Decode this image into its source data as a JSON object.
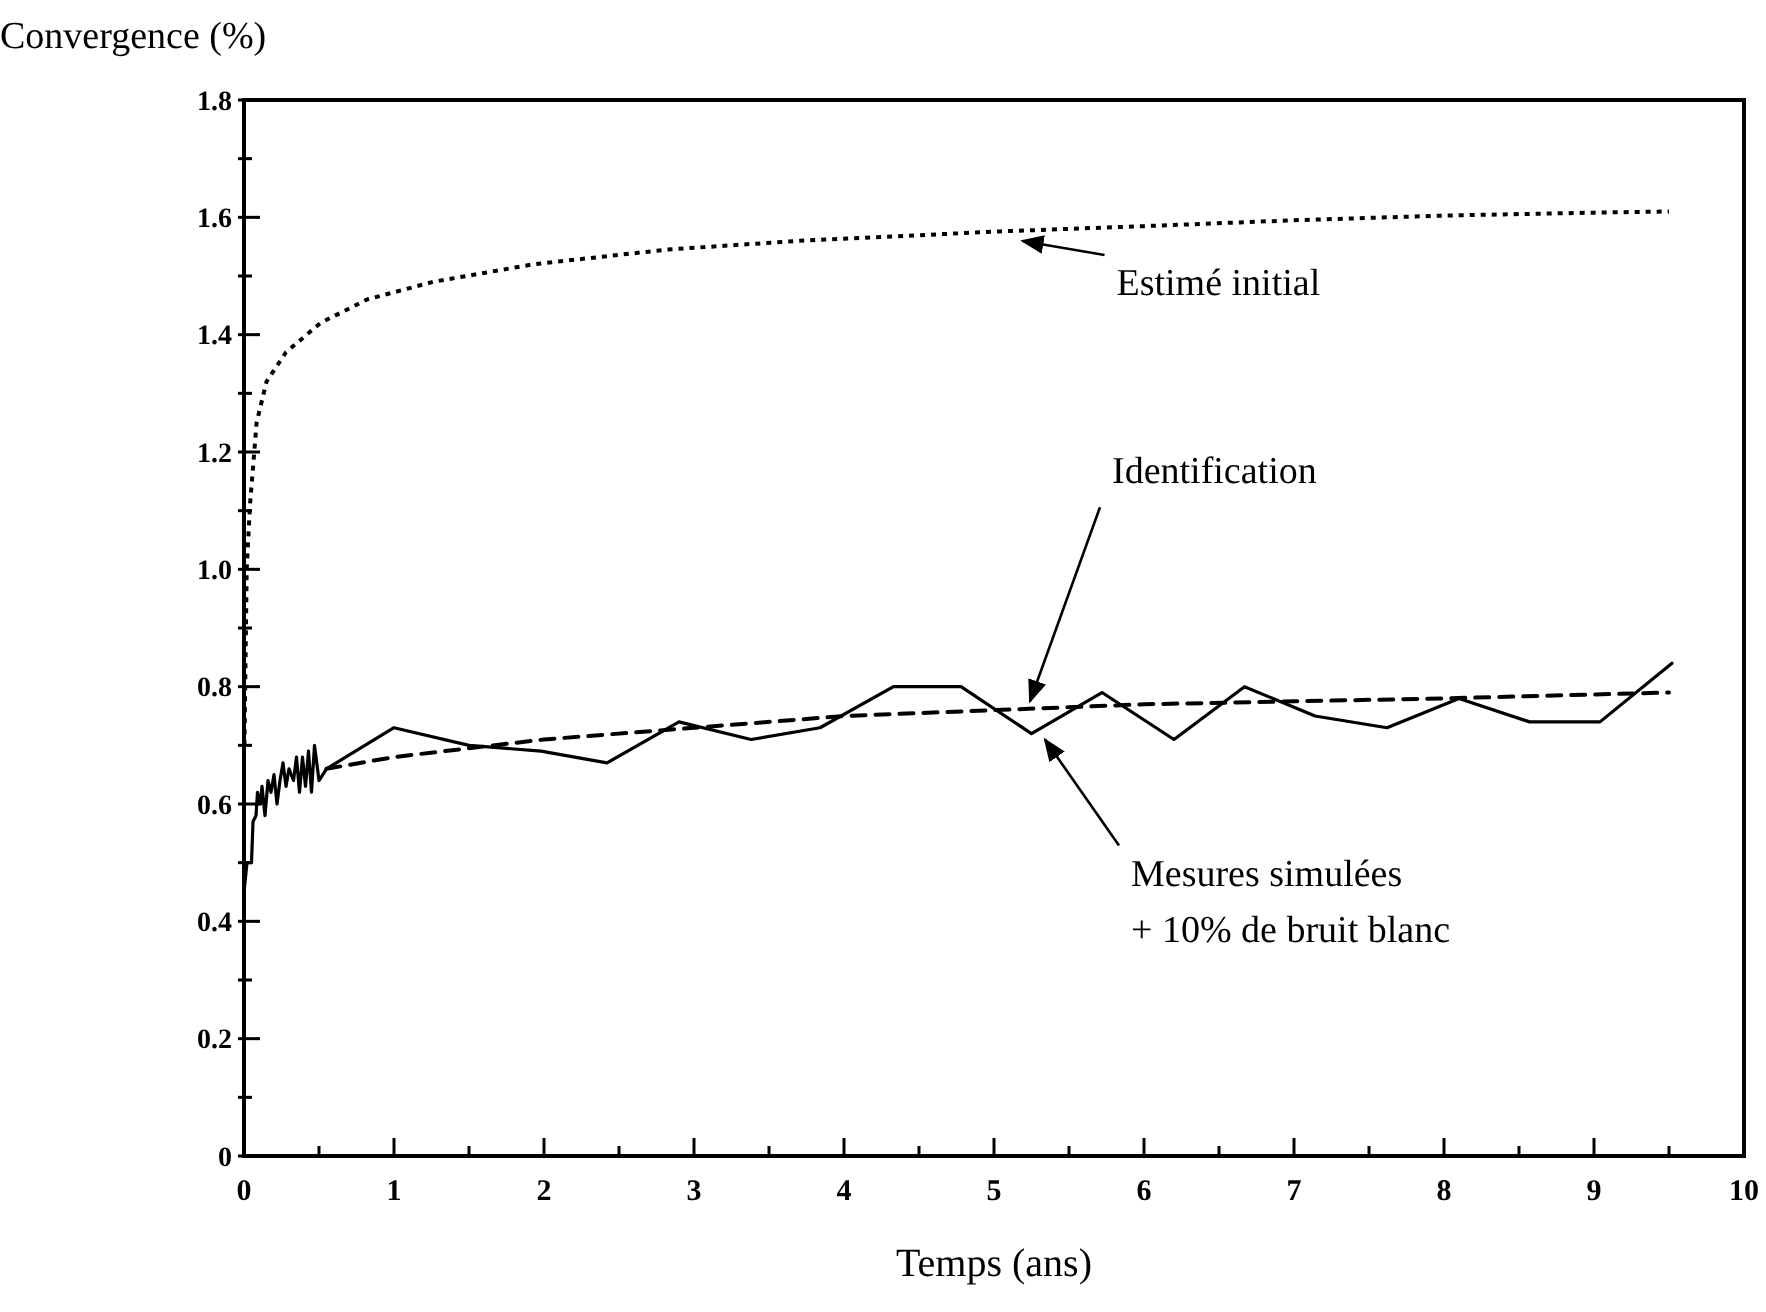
{
  "chart_data": {
    "type": "line",
    "ylabel": "Convergence (%)",
    "xlabel": "Temps (ans)",
    "xlim": [
      0,
      10
    ],
    "ylim": [
      0,
      1.8
    ],
    "xticks": [
      0,
      {
        "value": 0.5,
        "label": null
      },
      1,
      {
        "value": 1.5,
        "label": null
      },
      2,
      {
        "value": 2.5,
        "label": null
      },
      3,
      {
        "value": 3.5,
        "label": null
      },
      4,
      {
        "value": 4.5,
        "label": null
      },
      5,
      {
        "value": 5.5,
        "label": null
      },
      6,
      {
        "value": 6.5,
        "label": null
      },
      7,
      {
        "value": 7.5,
        "label": null
      },
      8,
      {
        "value": 8.5,
        "label": null
      },
      9,
      {
        "value": 9.5,
        "label": null
      },
      10
    ],
    "yticks": [
      0,
      {
        "value": 0.1,
        "label": null
      },
      0.2,
      {
        "value": 0.3,
        "label": null
      },
      0.4,
      {
        "value": 0.5,
        "label": null
      },
      0.6,
      {
        "value": 0.7,
        "label": null
      },
      0.8,
      {
        "value": 0.9,
        "label": null
      },
      {
        "value": 1.0,
        "label": "1.0"
      },
      {
        "value": 1.1,
        "label": null
      },
      1.2,
      {
        "value": 1.3,
        "label": null
      },
      1.4,
      {
        "value": 1.5,
        "label": null
      },
      1.6,
      {
        "value": 1.7,
        "label": null
      },
      1.8
    ],
    "grid": false,
    "marker": "none",
    "series": [
      {
        "color": "#000000",
        "line_style": "dotted",
        "x": [
          0.003,
          0.018,
          0.04,
          0.084,
          0.15,
          0.28,
          0.51,
          0.82,
          1.26,
          1.93,
          2.82,
          3.7,
          5.04,
          6,
          7,
          8,
          9,
          9.5
        ],
        "values": [
          0.7,
          1.0,
          1.11,
          1.25,
          1.32,
          1.37,
          1.42,
          1.46,
          1.49,
          1.52,
          1.545,
          1.56,
          1.576,
          1.585,
          1.595,
          1.603,
          1.608,
          1.61
        ]
      },
      {
        "color": "#000000",
        "line_style": "solid",
        "x": [
          0,
          0.02,
          0.05,
          0.06,
          0.08,
          0.09,
          0.11,
          0.12,
          0.14,
          0.16,
          0.18,
          0.2,
          0.22,
          0.24,
          0.26,
          0.28,
          0.3,
          0.33,
          0.35,
          0.37,
          0.39,
          0.41,
          0.43,
          0.45,
          0.47,
          0.5,
          0.55,
          1.0,
          1.5,
          1.98,
          2.42,
          2.9,
          3.38,
          3.84,
          4.33,
          4.78,
          5.25,
          5.72,
          6.2,
          6.67,
          7.14,
          7.62,
          8.1,
          8.57,
          9.04,
          9.52
        ],
        "values": [
          0.45,
          0.5,
          0.5,
          0.57,
          0.58,
          0.62,
          0.6,
          0.63,
          0.58,
          0.64,
          0.62,
          0.65,
          0.6,
          0.64,
          0.67,
          0.63,
          0.66,
          0.64,
          0.68,
          0.62,
          0.68,
          0.63,
          0.69,
          0.62,
          0.7,
          0.64,
          0.66,
          0.73,
          0.7,
          0.69,
          0.67,
          0.74,
          0.71,
          0.73,
          0.8,
          0.8,
          0.72,
          0.79,
          0.71,
          0.8,
          0.75,
          0.73,
          0.78,
          0.74,
          0.74,
          0.84
        ]
      },
      {
        "color": "#000000",
        "line_style": "dashed",
        "x": [
          0.55,
          1,
          2,
          3,
          4,
          5,
          6,
          7,
          8,
          9.5
        ],
        "values": [
          0.66,
          0.68,
          0.71,
          0.73,
          0.75,
          0.76,
          0.77,
          0.775,
          0.78,
          0.79
        ]
      }
    ],
    "annotations": [
      {
        "text": "Estimé initial",
        "x": 5.15,
        "y": 1.57
      },
      {
        "text": "Identification",
        "x": 5.2,
        "y": 0.765
      },
      {
        "text": "Mesures simulées\n+ 10% de bruit blanc",
        "x": 5.3,
        "y": 0.72
      }
    ]
  }
}
